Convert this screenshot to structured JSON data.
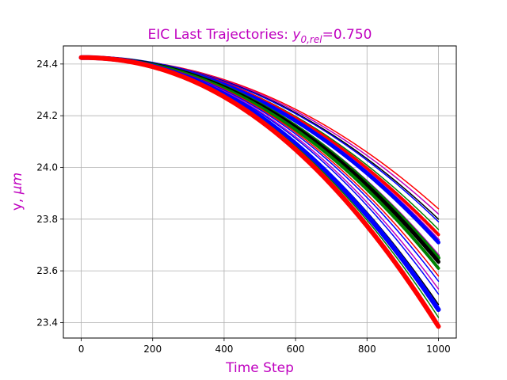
{
  "chart_data": {
    "type": "line",
    "title_main": "EIC Last Trajectories: ",
    "title_var": "y",
    "title_sub": "0,",
    "title_subit": "rel",
    "title_value": "=0.750",
    "xlabel": "Time Step",
    "ylabel_main": "y, ",
    "ylabel_unit": "μm",
    "xlim": [
      -50,
      1050
    ],
    "ylim": [
      23.34,
      24.47
    ],
    "xticks": [
      0,
      200,
      400,
      600,
      800,
      1000
    ],
    "yticks": [
      23.4,
      23.6,
      23.8,
      24.0,
      24.2,
      24.4
    ],
    "grid": true,
    "title_color": "#bf00bf",
    "x": [
      0,
      1000
    ],
    "y_start": 24.425,
    "series": [
      {
        "color": "#ff0000",
        "width": 1.5,
        "final": 23.84
      },
      {
        "color": "#bf00bf",
        "width": 1.5,
        "final": 23.82
      },
      {
        "color": "#000000",
        "width": 1.5,
        "final": 23.8
      },
      {
        "color": "#0000ff",
        "width": 1.5,
        "final": 23.79
      },
      {
        "color": "#008000",
        "width": 1.5,
        "final": 23.76
      },
      {
        "color": "#ff0000",
        "width": 4,
        "final": 23.74
      },
      {
        "color": "#bf00bf",
        "width": 3,
        "final": 23.72
      },
      {
        "color": "#0000ff",
        "width": 5,
        "final": 23.71
      },
      {
        "color": "#bf00bf",
        "width": 3,
        "final": 23.66
      },
      {
        "color": "#008000",
        "width": 5,
        "final": 23.65
      },
      {
        "color": "#000000",
        "width": 5,
        "final": 23.635
      },
      {
        "color": "#008000",
        "width": 4,
        "final": 23.61
      },
      {
        "color": "#ff0000",
        "width": 1.5,
        "final": 23.58
      },
      {
        "color": "#0000ff",
        "width": 1.5,
        "final": 23.56
      },
      {
        "color": "#bf00bf",
        "width": 1.5,
        "final": 23.53
      },
      {
        "color": "#0000ff",
        "width": 1.5,
        "final": 23.51
      },
      {
        "color": "#000000",
        "width": 1.5,
        "final": 23.47
      },
      {
        "color": "#0000ff",
        "width": 6,
        "final": 23.45
      },
      {
        "color": "#008000",
        "width": 1.5,
        "final": 23.42
      },
      {
        "color": "#ff0000",
        "width": 6,
        "final": 23.385
      }
    ]
  }
}
